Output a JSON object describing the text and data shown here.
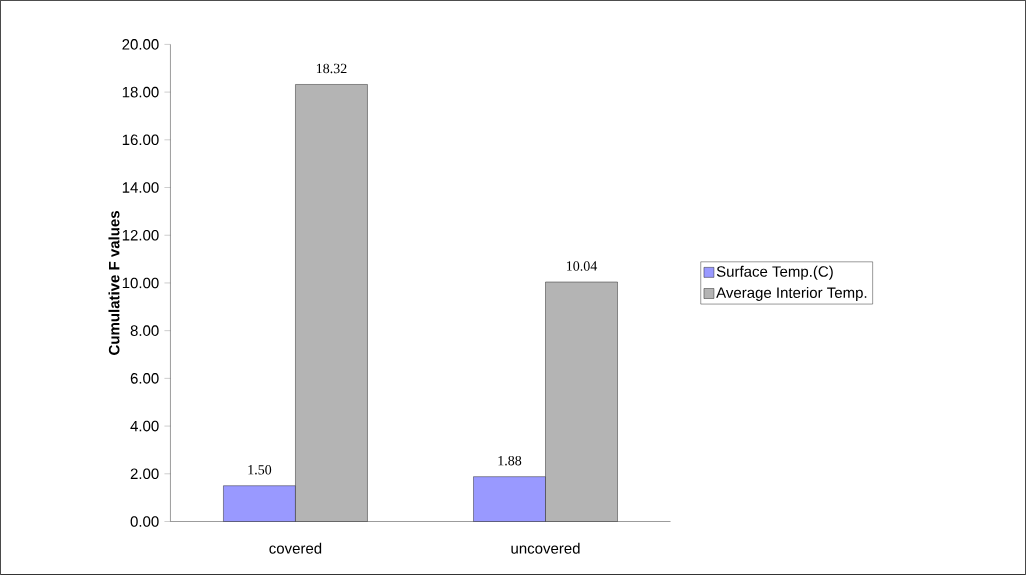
{
  "chart_data": {
    "type": "bar",
    "ylabel": "Cumulative F values",
    "categories": [
      "covered",
      "uncovered"
    ],
    "series": [
      {
        "name": "Surface Temp.(C)",
        "color": "#9999ff",
        "values": [
          1.5,
          1.88
        ],
        "value_labels": [
          "1.50",
          "1.88"
        ]
      },
      {
        "name": "Average Interior Temp.",
        "color": "#b4b4b4",
        "values": [
          18.32,
          10.04
        ],
        "value_labels": [
          "18.32",
          "10.04"
        ]
      }
    ],
    "ylim": [
      0,
      20
    ],
    "yticks": [
      {
        "value": 0,
        "label": "0.00"
      },
      {
        "value": 2,
        "label": "2.00"
      },
      {
        "value": 4,
        "label": "4.00"
      },
      {
        "value": 6,
        "label": "6.00"
      },
      {
        "value": 8,
        "label": "8.00"
      },
      {
        "value": 10,
        "label": "10.00"
      },
      {
        "value": 12,
        "label": "12.00"
      },
      {
        "value": 14,
        "label": "14.00"
      },
      {
        "value": 16,
        "label": "16.00"
      },
      {
        "value": 18,
        "label": "18.00"
      },
      {
        "value": 20,
        "label": "20.00"
      }
    ],
    "grid": false,
    "legend": "right"
  }
}
